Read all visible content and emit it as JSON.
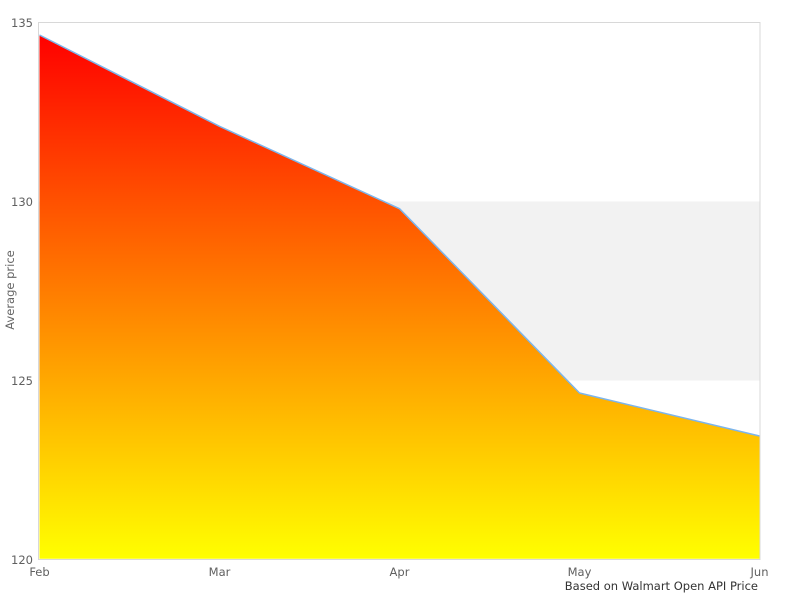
{
  "chart_data": {
    "type": "area",
    "title": "",
    "xlabel": "",
    "ylabel": "Average price",
    "x": [
      "Feb",
      "Mar",
      "Apr",
      "May",
      "Jun"
    ],
    "values": [
      134.65,
      132.1,
      129.8,
      124.65,
      123.45
    ],
    "ylim": [
      120,
      135
    ],
    "yticks": [
      135,
      130,
      125,
      120
    ],
    "ytick_labels": [
      "135",
      "130",
      "125",
      "120"
    ],
    "plot_band": {
      "from": 125,
      "to": 130,
      "color": "#f2f2f2"
    },
    "caption": "Based on Walmart Open API Price",
    "legend": "none",
    "grid": false,
    "colors": {
      "line": "#7cb5ec",
      "fill_top": "#ff0000",
      "fill_bottom": "#ffff00",
      "band": "#f2f2f2",
      "border": "#d8d8d8",
      "tick_text": "#606060",
      "caption_text": "#333333",
      "background": "#ffffff"
    }
  }
}
